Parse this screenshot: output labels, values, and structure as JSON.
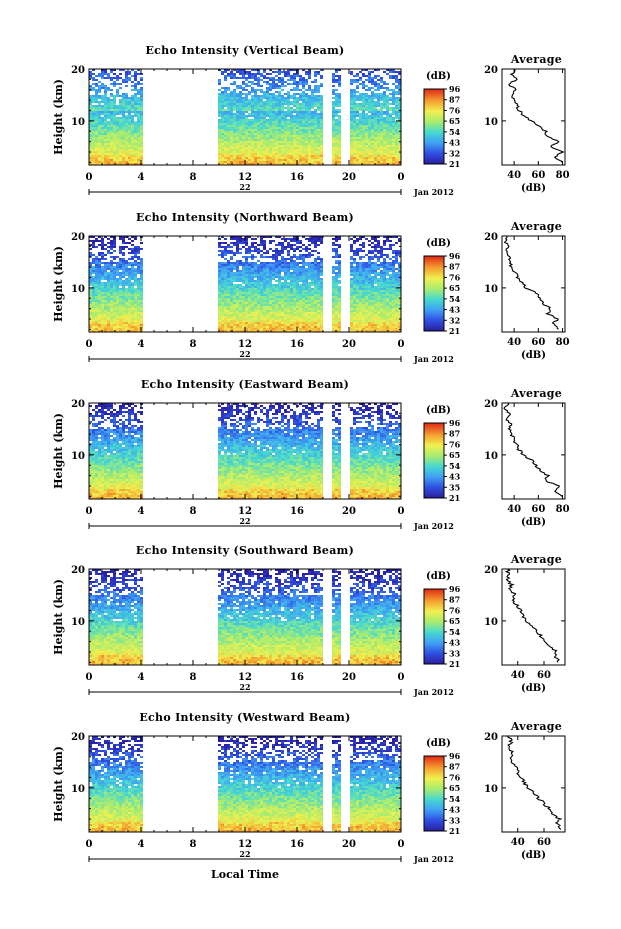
{
  "figure": {
    "xlabel": "Local Time",
    "date_label": "Jan 2012",
    "day_label": "22"
  },
  "chart_data": [
    {
      "type": "heatmap",
      "title": "Echo Intensity (Vertical Beam)",
      "ylabel": "Height (km)",
      "xlabel": "Local Time",
      "x_ticks": [
        "0",
        "4",
        "8",
        "12",
        "16",
        "20",
        "0"
      ],
      "y_ticks": [
        "10",
        "20"
      ],
      "xlim": [
        0,
        24
      ],
      "ylim": [
        1.5,
        20
      ],
      "colorbar_label": "(dB)",
      "colorbar_ticks": [
        "96",
        "87",
        "76",
        "65",
        "54",
        "43",
        "32",
        "21"
      ],
      "data_gaps_hours": [
        [
          4,
          9.7
        ],
        [
          17.9,
          18.5
        ],
        [
          19.3,
          20
        ]
      ],
      "profile": {
        "title": "Average",
        "xlabel": "(dB)",
        "x_ticks": [
          "40",
          "60",
          "80"
        ],
        "y_ticks": [
          "10",
          "20"
        ],
        "xlim": [
          30,
          82
        ],
        "height": [
          2,
          3,
          4,
          5,
          6,
          7,
          8,
          9,
          10,
          11,
          12,
          13,
          14,
          15,
          16,
          17,
          18,
          19,
          20
        ],
        "value": [
          79,
          74,
          80,
          70,
          76,
          68,
          66,
          60,
          54,
          48,
          44,
          42,
          40,
          38,
          41,
          36,
          42,
          38,
          40
        ]
      }
    },
    {
      "type": "heatmap",
      "title": "Echo Intensity (Northward Beam)",
      "ylabel": "Height (km)",
      "xlabel": "Local Time",
      "x_ticks": [
        "0",
        "4",
        "8",
        "12",
        "16",
        "20",
        "0"
      ],
      "y_ticks": [
        "10",
        "20"
      ],
      "xlim": [
        0,
        24
      ],
      "ylim": [
        1.5,
        20
      ],
      "colorbar_label": "(dB)",
      "colorbar_ticks": [
        "96",
        "87",
        "76",
        "65",
        "54",
        "43",
        "32",
        "21"
      ],
      "data_gaps_hours": [
        [
          4,
          9.7
        ],
        [
          17.9,
          18.5
        ],
        [
          19.3,
          20
        ]
      ],
      "profile": {
        "title": "Average",
        "xlabel": "(dB)",
        "x_ticks": [
          "40",
          "60",
          "80"
        ],
        "y_ticks": [
          "10",
          "20"
        ],
        "xlim": [
          30,
          82
        ],
        "height": [
          2,
          3,
          4,
          5,
          6,
          7,
          8,
          9,
          10,
          11,
          12,
          13,
          14,
          15,
          16,
          17,
          18,
          19,
          20
        ],
        "value": [
          78,
          72,
          76,
          68,
          70,
          64,
          62,
          58,
          50,
          46,
          43,
          41,
          38,
          37,
          36,
          34,
          35,
          33,
          34
        ]
      }
    },
    {
      "type": "heatmap",
      "title": "Echo Intensity (Eastward Beam)",
      "ylabel": "Height (km)",
      "xlabel": "Local Time",
      "x_ticks": [
        "0",
        "4",
        "8",
        "12",
        "16",
        "20",
        "0"
      ],
      "y_ticks": [
        "10",
        "20"
      ],
      "xlim": [
        0,
        24
      ],
      "ylim": [
        1.5,
        20
      ],
      "colorbar_label": "(dB)",
      "colorbar_ticks": [
        "96",
        "87",
        "76",
        "65",
        "54",
        "43",
        "35",
        "21"
      ],
      "data_gaps_hours": [
        [
          4,
          9.7
        ],
        [
          17.9,
          18.5
        ],
        [
          19.3,
          20
        ]
      ],
      "profile": {
        "title": "Average",
        "xlabel": "(dB)",
        "x_ticks": [
          "40",
          "60",
          "80"
        ],
        "y_ticks": [
          "10",
          "20"
        ],
        "xlim": [
          30,
          82
        ],
        "height": [
          2,
          3,
          4,
          5,
          6,
          7,
          8,
          9,
          10,
          11,
          12,
          13,
          14,
          15,
          16,
          17,
          18,
          19,
          20
        ],
        "value": [
          80,
          74,
          78,
          66,
          68,
          62,
          58,
          54,
          48,
          44,
          42,
          40,
          38,
          36,
          37,
          34,
          36,
          33,
          35
        ]
      }
    },
    {
      "type": "heatmap",
      "title": "Echo Intensity (Southward Beam)",
      "ylabel": "Height (km)",
      "xlabel": "Local Time",
      "x_ticks": [
        "0",
        "4",
        "8",
        "12",
        "16",
        "20",
        "0"
      ],
      "y_ticks": [
        "10",
        "20"
      ],
      "xlim": [
        0,
        24
      ],
      "ylim": [
        1.5,
        20
      ],
      "colorbar_label": "(dB)",
      "colorbar_ticks": [
        "96",
        "87",
        "76",
        "65",
        "54",
        "43",
        "33",
        "21"
      ],
      "data_gaps_hours": [
        [
          4,
          9.7
        ],
        [
          17.9,
          18.5
        ],
        [
          19.3,
          20
        ]
      ],
      "profile": {
        "title": "Average",
        "xlabel": "(dB)",
        "x_ticks": [
          "40",
          "60"
        ],
        "y_ticks": [
          "10",
          "20"
        ],
        "xlim": [
          28,
          76
        ],
        "height": [
          2,
          3,
          4,
          5,
          6,
          7,
          8,
          9,
          10,
          11,
          12,
          13,
          14,
          15,
          16,
          17,
          18,
          19,
          20
        ],
        "value": [
          72,
          68,
          70,
          64,
          62,
          58,
          55,
          50,
          46,
          44,
          42,
          40,
          36,
          38,
          34,
          35,
          32,
          33,
          32
        ]
      }
    },
    {
      "type": "heatmap",
      "title": "Echo Intensity (Westward Beam)",
      "ylabel": "Height (km)",
      "xlabel": "Local Time",
      "x_ticks": [
        "0",
        "4",
        "8",
        "12",
        "16",
        "20",
        "0"
      ],
      "y_ticks": [
        "10",
        "20"
      ],
      "xlim": [
        0,
        24
      ],
      "ylim": [
        1.5,
        20
      ],
      "colorbar_label": "(dB)",
      "colorbar_ticks": [
        "96",
        "87",
        "76",
        "65",
        "54",
        "43",
        "33",
        "21"
      ],
      "data_gaps_hours": [
        [
          4,
          9.7
        ],
        [
          17.9,
          18.5
        ],
        [
          19.3,
          20
        ]
      ],
      "profile": {
        "title": "Average",
        "xlabel": "(dB)",
        "x_ticks": [
          "40",
          "60"
        ],
        "y_ticks": [
          "10",
          "20"
        ],
        "xlim": [
          28,
          76
        ],
        "height": [
          2,
          3,
          4,
          5,
          6,
          7,
          8,
          9,
          10,
          11,
          12,
          13,
          14,
          15,
          16,
          17,
          18,
          19,
          20
        ],
        "value": [
          74,
          70,
          72,
          66,
          64,
          60,
          56,
          52,
          48,
          45,
          42,
          40,
          38,
          36,
          34,
          36,
          33,
          35,
          32
        ]
      }
    }
  ]
}
